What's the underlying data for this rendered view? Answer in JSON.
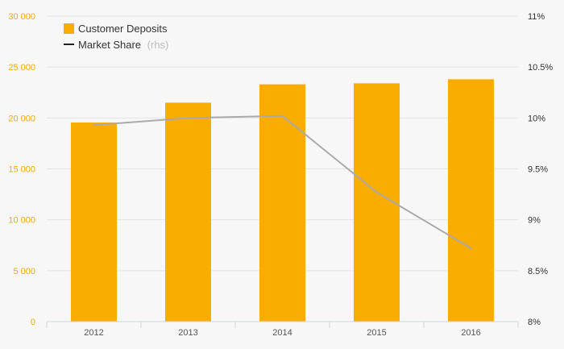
{
  "chart_data": {
    "type": "bar",
    "categories": [
      "2012",
      "2013",
      "2014",
      "2015",
      "2016"
    ],
    "series": [
      {
        "name": "Customer Deposits",
        "type": "bar",
        "axis": "left",
        "color": "#f9ad00",
        "values": [
          19550,
          21500,
          23300,
          23400,
          23800
        ]
      },
      {
        "name": "Market Share",
        "type": "line",
        "axis": "right",
        "color": "#aaaaaa",
        "values": [
          9.93,
          10.0,
          10.02,
          9.27,
          8.72
        ]
      }
    ],
    "y_left": {
      "min": 0,
      "max": 30000,
      "ticks": [
        0,
        5000,
        10000,
        15000,
        20000,
        25000,
        30000
      ],
      "tick_labels": [
        "0",
        "5 000",
        "10 000",
        "15 000",
        "20 000",
        "25 000",
        "30 000"
      ],
      "color": "#f4a900"
    },
    "y_right": {
      "min": 8,
      "max": 11,
      "ticks": [
        8,
        8.5,
        9,
        9.5,
        10,
        10.5,
        11
      ],
      "tick_labels": [
        "8%",
        "8.5%",
        "9%",
        "9.5%",
        "10%",
        "10.5%",
        "11%"
      ]
    },
    "legend": {
      "placement": "top-left",
      "items": [
        {
          "label": "Customer Deposits",
          "marker": "square",
          "color": "#f9ad00"
        },
        {
          "label": "Market Share",
          "note": "(rhs)",
          "marker": "line",
          "color": "#222222"
        }
      ]
    },
    "grid": true
  }
}
